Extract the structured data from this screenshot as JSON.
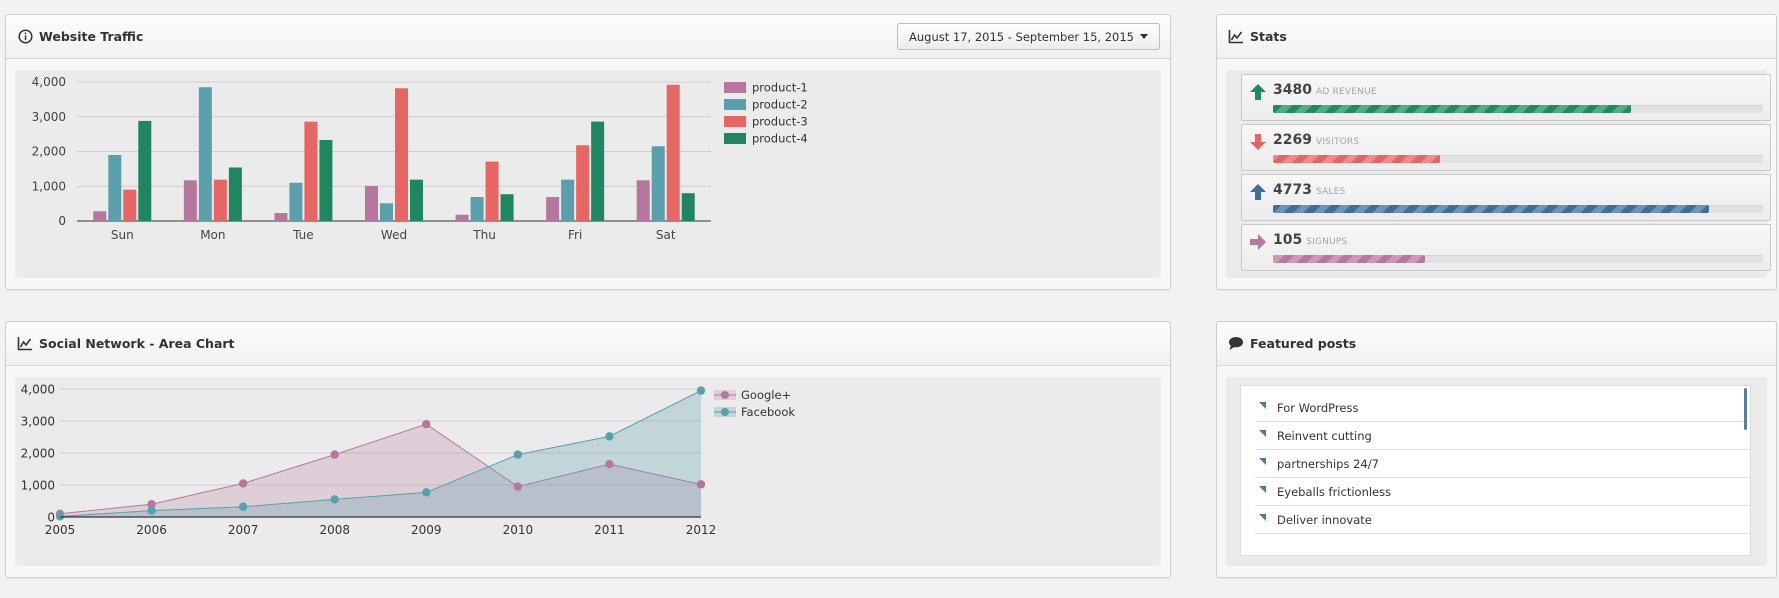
{
  "traffic": {
    "title": "Website Traffic",
    "date_range": "August 17, 2015 - September 15, 2015"
  },
  "stats": {
    "title": "Stats",
    "items": [
      {
        "value": "3480",
        "label": "AD REVENUE",
        "direction": "up",
        "color": "#1e8c5c",
        "progress": 0.73
      },
      {
        "value": "2269",
        "label": "VISITORS",
        "direction": "down",
        "color": "#e06666",
        "progress": 0.34
      },
      {
        "value": "4773",
        "label": "SALES",
        "direction": "up",
        "color": "#3f6d9e",
        "progress": 0.89
      },
      {
        "value": "105",
        "label": "SIGNUPS",
        "direction": "right",
        "color": "#b7779f",
        "progress": 0.31
      }
    ]
  },
  "social": {
    "title": "Social Network - Area Chart"
  },
  "posts": {
    "title": "Featured posts",
    "items": [
      "For WordPress",
      "Reinvent cutting",
      "partnerships 24/7",
      "Eyeballs frictionless",
      "Deliver innovate"
    ]
  },
  "chart_data": [
    {
      "type": "bar",
      "categories": [
        "Sun",
        "Mon",
        "Tue",
        "Wed",
        "Thu",
        "Fri",
        "Sat"
      ],
      "series": [
        {
          "name": "product-1",
          "color": "#b5779e",
          "values": [
            280,
            1170,
            230,
            1010,
            180,
            690,
            1170
          ]
        },
        {
          "name": "product-2",
          "color": "#5a9fab",
          "values": [
            1900,
            3850,
            1100,
            510,
            690,
            1190,
            2150
          ]
        },
        {
          "name": "product-3",
          "color": "#e66666",
          "values": [
            900,
            1190,
            2860,
            3820,
            1710,
            2180,
            3920
          ]
        },
        {
          "name": "product-4",
          "color": "#1f8660",
          "values": [
            2880,
            1540,
            2330,
            1190,
            770,
            2860,
            800
          ]
        }
      ],
      "yticks": [
        "0",
        "1,000",
        "2,000",
        "3,000",
        "4,000"
      ],
      "ylim": [
        0,
        4000
      ],
      "legend": "top-right",
      "grid": true
    },
    {
      "type": "area",
      "x": [
        "2005",
        "2006",
        "2007",
        "2008",
        "2009",
        "2010",
        "2011",
        "2012"
      ],
      "series": [
        {
          "name": "Google+",
          "color": "#b5779e",
          "values": [
            100,
            400,
            1050,
            1950,
            2900,
            950,
            1650,
            1020
          ]
        },
        {
          "name": "Facebook",
          "color": "#5a9fab",
          "values": [
            20,
            200,
            320,
            550,
            770,
            1950,
            2520,
            3950
          ]
        }
      ],
      "yticks": [
        "0",
        "1,000",
        "2,000",
        "3,000",
        "4,000"
      ],
      "ylim": [
        0,
        4000
      ],
      "legend": "top-right",
      "grid": true
    }
  ]
}
